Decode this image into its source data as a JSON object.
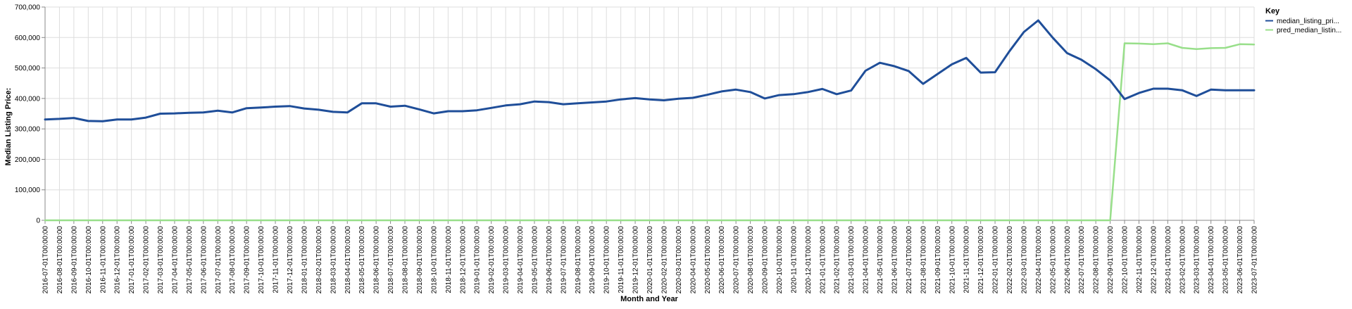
{
  "chart_data": {
    "type": "line",
    "xlabel": "Month and Year",
    "ylabel": "Median Listing Price:",
    "ylim": [
      0,
      700000
    ],
    "yticks": [
      "0",
      "100,000",
      "200,000",
      "300,000",
      "400,000",
      "500,000",
      "600,000",
      "700,000"
    ],
    "grid": true,
    "legend": {
      "title": "Key",
      "placement": "top-right"
    },
    "categories": [
      "2016-07-01T00:00:00",
      "2016-08-01T00:00:00",
      "2016-09-01T00:00:00",
      "2016-10-01T00:00:00",
      "2016-11-01T00:00:00",
      "2016-12-01T00:00:00",
      "2017-01-01T00:00:00",
      "2017-02-01T00:00:00",
      "2017-03-01T00:00:00",
      "2017-04-01T00:00:00",
      "2017-05-01T00:00:00",
      "2017-06-01T00:00:00",
      "2017-07-01T00:00:00",
      "2017-08-01T00:00:00",
      "2017-09-01T00:00:00",
      "2017-10-01T00:00:00",
      "2017-11-01T00:00:00",
      "2017-12-01T00:00:00",
      "2018-01-01T00:00:00",
      "2018-02-01T00:00:00",
      "2018-03-01T00:00:00",
      "2018-04-01T00:00:00",
      "2018-05-01T00:00:00",
      "2018-06-01T00:00:00",
      "2018-07-01T00:00:00",
      "2018-08-01T00:00:00",
      "2018-09-01T00:00:00",
      "2018-10-01T00:00:00",
      "2018-11-01T00:00:00",
      "2018-12-01T00:00:00",
      "2019-01-01T00:00:00",
      "2019-02-01T00:00:00",
      "2019-03-01T00:00:00",
      "2019-04-01T00:00:00",
      "2019-05-01T00:00:00",
      "2019-06-01T00:00:00",
      "2019-07-01T00:00:00",
      "2019-08-01T00:00:00",
      "2019-09-01T00:00:00",
      "2019-10-01T00:00:00",
      "2019-11-01T00:00:00",
      "2019-12-01T00:00:00",
      "2020-01-01T00:00:00",
      "2020-02-01T00:00:00",
      "2020-03-01T00:00:00",
      "2020-04-01T00:00:00",
      "2020-05-01T00:00:00",
      "2020-06-01T00:00:00",
      "2020-07-01T00:00:00",
      "2020-08-01T00:00:00",
      "2020-09-01T00:00:00",
      "2020-10-01T00:00:00",
      "2020-11-01T00:00:00",
      "2020-12-01T00:00:00",
      "2021-01-01T00:00:00",
      "2021-02-01T00:00:00",
      "2021-03-01T00:00:00",
      "2021-04-01T00:00:00",
      "2021-05-01T00:00:00",
      "2021-06-01T00:00:00",
      "2021-07-01T00:00:00",
      "2021-08-01T00:00:00",
      "2021-09-01T00:00:00",
      "2021-10-01T00:00:00",
      "2021-11-01T00:00:00",
      "2021-12-01T00:00:00",
      "2022-01-01T00:00:00",
      "2022-02-01T00:00:00",
      "2022-03-01T00:00:00",
      "2022-04-01T00:00:00",
      "2022-05-01T00:00:00",
      "2022-06-01T00:00:00",
      "2022-07-01T00:00:00",
      "2022-08-01T00:00:00",
      "2022-09-01T00:00:00",
      "2022-10-01T00:00:00",
      "2022-11-01T00:00:00",
      "2022-12-01T00:00:00",
      "2023-01-01T00:00:00",
      "2023-02-01T00:00:00",
      "2023-03-01T00:00:00",
      "2023-04-01T00:00:00",
      "2023-05-01T00:00:00",
      "2023-06-01T00:00:00",
      "2023-07-01T00:00:00"
    ],
    "series": [
      {
        "name": "median_listing_pri...",
        "color": "#1f4e99",
        "values": [
          331000,
          333000,
          336000,
          326000,
          325000,
          331000,
          331000,
          337000,
          350000,
          351000,
          353000,
          354000,
          360000,
          354000,
          368000,
          370000,
          373000,
          375000,
          367000,
          363000,
          356000,
          354000,
          384000,
          384000,
          373000,
          376000,
          364000,
          351000,
          358000,
          358000,
          361000,
          369000,
          377000,
          381000,
          390000,
          388000,
          381000,
          384000,
          387000,
          390000,
          397000,
          401000,
          397000,
          394000,
          399000,
          402000,
          412000,
          423000,
          429000,
          421000,
          400000,
          411000,
          414000,
          421000,
          431000,
          414000,
          426000,
          491000,
          517000,
          506000,
          490000,
          448000,
          480000,
          512000,
          533000,
          485000,
          486000,
          555000,
          618000,
          656000,
          600000,
          549000,
          527000,
          496000,
          459000,
          398000,
          418000,
          432000,
          432000,
          427000,
          408000,
          429000,
          427000,
          427000,
          427000
        ]
      },
      {
        "name": "pred_median_listin...",
        "color": "#98df8a",
        "values": [
          0,
          0,
          0,
          0,
          0,
          0,
          0,
          0,
          0,
          0,
          0,
          0,
          0,
          0,
          0,
          0,
          0,
          0,
          0,
          0,
          0,
          0,
          0,
          0,
          0,
          0,
          0,
          0,
          0,
          0,
          0,
          0,
          0,
          0,
          0,
          0,
          0,
          0,
          0,
          0,
          0,
          0,
          0,
          0,
          0,
          0,
          0,
          0,
          0,
          0,
          0,
          0,
          0,
          0,
          0,
          0,
          0,
          0,
          0,
          0,
          0,
          0,
          0,
          0,
          0,
          0,
          0,
          0,
          0,
          0,
          0,
          0,
          0,
          0,
          0,
          581000,
          580000,
          578000,
          581000,
          566000,
          562000,
          565000,
          566000,
          578000,
          577000
        ]
      }
    ]
  }
}
